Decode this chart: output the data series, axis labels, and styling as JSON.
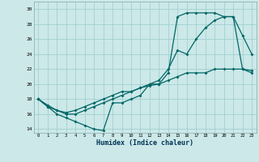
{
  "xlabel": "Humidex (Indice chaleur)",
  "xlim": [
    0,
    23
  ],
  "ylim": [
    13.5,
    31
  ],
  "xticks": [
    0,
    1,
    2,
    3,
    4,
    5,
    6,
    7,
    8,
    9,
    10,
    11,
    12,
    13,
    14,
    15,
    16,
    17,
    18,
    19,
    20,
    21,
    22,
    23
  ],
  "yticks": [
    14,
    16,
    18,
    20,
    22,
    24,
    26,
    28,
    30
  ],
  "background_color": "#cce8e8",
  "grid_color": "#99cccc",
  "line_color": "#006666",
  "curve1_x": [
    0,
    1,
    2,
    3,
    4,
    5,
    6,
    7,
    8,
    9,
    10,
    11,
    12,
    13,
    14,
    15,
    16,
    17,
    18,
    19,
    20,
    21,
    22,
    23
  ],
  "curve1_y": [
    18,
    17,
    16,
    15.5,
    15,
    14.5,
    14,
    13.8,
    17.5,
    17.5,
    18,
    18.5,
    20,
    20.5,
    22,
    24.5,
    24,
    26,
    27.5,
    28.5,
    29,
    29,
    26.5,
    24
  ],
  "curve2_x": [
    0,
    1,
    2,
    3,
    4,
    5,
    6,
    7,
    8,
    9,
    10,
    11,
    12,
    13,
    14,
    15,
    16,
    17,
    18,
    19,
    20,
    21,
    22,
    23
  ],
  "curve2_y": [
    18,
    17.2,
    16.5,
    16.2,
    16.5,
    17,
    17.5,
    18,
    18.5,
    19,
    19,
    19.5,
    20,
    20,
    21.5,
    29,
    29.5,
    29.5,
    29.5,
    29.5,
    29,
    29,
    22,
    21.5
  ],
  "curve3_x": [
    0,
    1,
    2,
    3,
    4,
    5,
    6,
    7,
    8,
    9,
    10,
    11,
    12,
    13,
    14,
    15,
    16,
    17,
    18,
    19,
    20,
    21,
    22,
    23
  ],
  "curve3_y": [
    18,
    17,
    16.5,
    16,
    16,
    16.5,
    17,
    17.5,
    18,
    18.5,
    19,
    19.5,
    19.8,
    20,
    20.5,
    21,
    21.5,
    21.5,
    21.5,
    22,
    22,
    22,
    22,
    21.8
  ]
}
